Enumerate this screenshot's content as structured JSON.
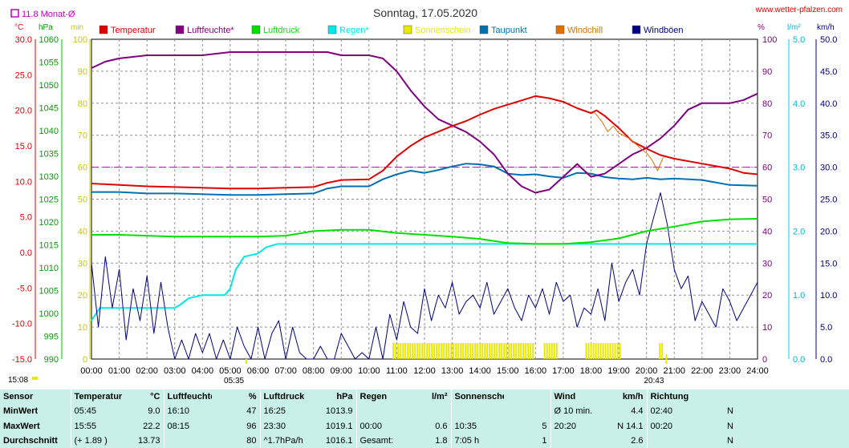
{
  "title": "Sonntag, 17.05.2020",
  "website": "www.wetter-pfalzen.com",
  "month_avg_label": "11.8 Monat-Ø",
  "unit_labels": {
    "temp": "°C",
    "pressure": "hPa",
    "rain_min": "min",
    "percent": "%",
    "rain": "l/m²",
    "wind": "km/h"
  },
  "legend": [
    {
      "label": "Temperatur",
      "color": "#e00000"
    },
    {
      "label": "Luftfeuchte*",
      "color": "#800080"
    },
    {
      "label": "Luftdruck",
      "color": "#00e000"
    },
    {
      "label": "Regen*",
      "color": "#00e8e8"
    },
    {
      "label": "Sonnenschein",
      "color": "#e8e800"
    },
    {
      "label": "Taupunkt",
      "color": "#0070b0"
    },
    {
      "label": "Windchill",
      "color": "#e07000"
    },
    {
      "label": "Windböen",
      "color": "#000080"
    }
  ],
  "axes": {
    "temp_ticks": [
      "30.0",
      "25.0",
      "20.0",
      "15.0",
      "10.0",
      "5.0",
      "0.0",
      "-5.0",
      "-10.0",
      "-15.0"
    ],
    "pressure_ticks": [
      "1060",
      "1055",
      "1050",
      "1045",
      "1040",
      "1035",
      "1030",
      "1025",
      "1020",
      "1015",
      "1010",
      "1005",
      "1000",
      "995",
      "990"
    ],
    "min_ticks": [
      "100",
      "90",
      "80",
      "70",
      "60",
      "50",
      "40",
      "30",
      "20",
      "10",
      "0"
    ],
    "pct_ticks": [
      "100",
      "90",
      "80",
      "70",
      "60",
      "50",
      "40",
      "30",
      "20",
      "10",
      "0"
    ],
    "rain_ticks": [
      "5.0",
      "4.0",
      "3.0",
      "2.0",
      "1.0",
      "0.0"
    ],
    "wind_ticks": [
      "50.0",
      "45.0",
      "40.0",
      "35.0",
      "30.0",
      "25.0",
      "20.0",
      "15.0",
      "10.0",
      "5.0",
      "0.0"
    ],
    "time_ticks": [
      "00:00",
      "01:00",
      "02:00",
      "03:00",
      "04:00",
      "05:00",
      "06:00",
      "07:00",
      "08:00",
      "09:00",
      "10:00",
      "11:00",
      "12:00",
      "13:00",
      "14:00",
      "15:00",
      "16:00",
      "17:00",
      "18:00",
      "19:00",
      "20:00",
      "21:00",
      "22:00",
      "23:00",
      "24:00"
    ]
  },
  "markers": {
    "sunrise": "05:35",
    "sunset": "20:43",
    "now": "15:08"
  },
  "chart_data": {
    "type": "line",
    "x_unit": "hour of day",
    "xlim": [
      0,
      24
    ],
    "reference_line": {
      "value_percent": 60,
      "color": "#c000c0"
    },
    "series": [
      {
        "name": "Temperatur",
        "axis": "°C",
        "ylim": [
          -15,
          30
        ],
        "color": "#e00000",
        "x": [
          0,
          1,
          2,
          3,
          4,
          5,
          6,
          7,
          8,
          8.5,
          9,
          10,
          10.5,
          11,
          11.5,
          12,
          12.5,
          13,
          13.5,
          14,
          14.5,
          15,
          15.5,
          16,
          16.5,
          17,
          17.5,
          18,
          18.2,
          18.5,
          19,
          19.5,
          20,
          20.5,
          21,
          22,
          23,
          23.5,
          24
        ],
        "y": [
          9.7,
          9.5,
          9.3,
          9.2,
          9.1,
          9.0,
          9.0,
          9.1,
          9.2,
          9.8,
          10.2,
          10.3,
          11.5,
          13.5,
          15.0,
          16.2,
          17.0,
          17.8,
          18.5,
          19.4,
          20.2,
          20.8,
          21.4,
          22.0,
          21.7,
          21.2,
          20.3,
          19.6,
          20.0,
          19.2,
          17.5,
          15.6,
          14.6,
          13.7,
          13.2,
          12.5,
          11.8,
          11.2,
          11.0
        ]
      },
      {
        "name": "Luftfeuchte*",
        "axis": "%",
        "ylim": [
          0,
          100
        ],
        "color": "#800080",
        "x": [
          0,
          0.5,
          1,
          2,
          3,
          4,
          5,
          6,
          7,
          8,
          8.5,
          9,
          9.5,
          10,
          10.5,
          11,
          11.5,
          12,
          12.5,
          13,
          13.5,
          14,
          14.5,
          15,
          15.5,
          16,
          16.5,
          17,
          17.5,
          18,
          18.5,
          19,
          19.5,
          20,
          20.5,
          21,
          21.5,
          22,
          22.5,
          23,
          23.5,
          24
        ],
        "y": [
          91,
          93,
          94,
          95,
          95,
          95,
          96,
          96,
          96,
          96,
          96,
          95,
          95,
          95,
          94,
          90,
          84,
          79,
          75,
          73,
          71,
          68,
          64,
          58,
          54,
          52,
          53,
          57,
          61,
          57,
          58,
          61,
          64,
          66,
          69,
          73,
          78,
          80,
          80,
          80,
          81,
          83
        ]
      },
      {
        "name": "Luftdruck",
        "axis": "hPa",
        "ylim": [
          990,
          1060
        ],
        "color": "#00e000",
        "x": [
          0,
          1,
          2,
          3,
          4,
          5,
          6,
          7,
          8,
          9,
          10,
          11,
          12,
          13,
          14,
          15,
          16,
          17,
          18,
          19,
          20,
          21,
          22,
          23,
          24
        ],
        "y": [
          1017.2,
          1017.2,
          1017.0,
          1016.8,
          1016.8,
          1016.8,
          1016.8,
          1017.0,
          1018.0,
          1018.3,
          1018.3,
          1017.6,
          1017.2,
          1016.8,
          1016.3,
          1015.4,
          1015.2,
          1015.2,
          1015.6,
          1016.4,
          1018.0,
          1019.0,
          1020.1,
          1020.6,
          1020.7
        ]
      },
      {
        "name": "Regen*",
        "axis": "l/m²",
        "ylim": [
          0,
          5
        ],
        "color": "#00e8e8",
        "x": [
          0,
          0.15,
          0.3,
          0.5,
          1,
          2,
          3,
          3.2,
          3.5,
          4,
          4.8,
          5,
          5.2,
          5.5,
          6,
          6.3,
          6.7,
          7,
          8,
          9,
          10,
          11,
          12,
          13,
          14,
          15,
          16,
          17,
          18,
          19,
          20,
          21,
          22,
          23,
          24
        ],
        "y": [
          0.6,
          0.7,
          0.8,
          0.8,
          0.8,
          0.8,
          0.8,
          0.85,
          0.95,
          1.0,
          1.0,
          1.1,
          1.4,
          1.6,
          1.65,
          1.75,
          1.8,
          1.8,
          1.8,
          1.8,
          1.8,
          1.8,
          1.8,
          1.8,
          1.8,
          1.8,
          1.8,
          1.8,
          1.8,
          1.8,
          1.8,
          1.8,
          1.8,
          1.8,
          1.8
        ]
      },
      {
        "name": "Sonnenschein",
        "axis": "min",
        "type": "bar",
        "color": "#e8e800",
        "intervals": [
          [
            10.85,
            15.9
          ],
          [
            16.3,
            16.8
          ],
          [
            17.8,
            19.1
          ],
          [
            20.45,
            20.55
          ]
        ],
        "bar_height_min": 5
      },
      {
        "name": "Taupunkt",
        "axis": "°C",
        "ylim": [
          -15,
          30
        ],
        "color": "#0070b0",
        "x": [
          0,
          1,
          2,
          3,
          4,
          5,
          6,
          7,
          8,
          8.5,
          9,
          10,
          10.5,
          11,
          11.5,
          12,
          12.5,
          13,
          13.5,
          14,
          14.5,
          15,
          15.5,
          16,
          16.5,
          17,
          17.5,
          18,
          18.5,
          19,
          19.5,
          20,
          20.5,
          21,
          22,
          23,
          24
        ],
        "y": [
          8.5,
          8.5,
          8.3,
          8.3,
          8.2,
          8.1,
          8.1,
          8.2,
          8.3,
          9.0,
          9.3,
          9.3,
          10.3,
          11.0,
          11.5,
          11.2,
          11.6,
          12.1,
          12.5,
          12.4,
          12.1,
          11.1,
          10.9,
          11.0,
          10.7,
          10.5,
          11.2,
          11.1,
          10.6,
          10.4,
          10.3,
          10.5,
          10.3,
          10.4,
          10.2,
          9.5,
          9.4
        ]
      },
      {
        "name": "Windchill",
        "axis": "°C",
        "ylim": [
          -15,
          30
        ],
        "color": "#e07000",
        "x": [
          18.1,
          18.4,
          18.6,
          18.8,
          19,
          19.4,
          19.8,
          20,
          20.2,
          20.4,
          20.6
        ],
        "y": [
          19.8,
          18.4,
          17.0,
          17.8,
          16.8,
          16.0,
          14.6,
          14.0,
          13.0,
          11.5,
          13.4
        ]
      },
      {
        "name": "Windböen",
        "axis": "km/h",
        "ylim": [
          0,
          50
        ],
        "color": "#000080",
        "x": [
          0,
          0.25,
          0.5,
          0.75,
          1,
          1.25,
          1.5,
          1.75,
          2,
          2.25,
          2.5,
          2.75,
          3,
          3.25,
          3.5,
          3.75,
          4,
          4.25,
          4.5,
          4.75,
          5,
          5.25,
          5.5,
          5.75,
          6,
          6.25,
          6.5,
          6.75,
          7,
          7.25,
          7.5,
          7.75,
          8,
          8.25,
          8.5,
          8.75,
          9,
          9.25,
          9.5,
          9.75,
          10,
          10.25,
          10.5,
          10.75,
          11,
          11.25,
          11.5,
          11.75,
          12,
          12.25,
          12.5,
          12.75,
          13,
          13.25,
          13.5,
          13.75,
          14,
          14.25,
          14.5,
          14.75,
          15,
          15.25,
          15.5,
          15.75,
          16,
          16.25,
          16.5,
          16.75,
          17,
          17.25,
          17.5,
          17.75,
          18,
          18.25,
          18.5,
          18.75,
          19,
          19.25,
          19.5,
          19.75,
          20,
          20.25,
          20.5,
          20.75,
          21,
          21.25,
          21.5,
          21.75,
          22,
          22.25,
          22.5,
          22.75,
          23,
          23.25,
          23.5,
          23.75,
          24
        ],
        "y": [
          15,
          5,
          16,
          8,
          14,
          3,
          11,
          6,
          13,
          4,
          12,
          5,
          0,
          3,
          0,
          4,
          1,
          4,
          0,
          3,
          0,
          5,
          2,
          0,
          5,
          0,
          4,
          6,
          0,
          5,
          1,
          0,
          0,
          2,
          0,
          0,
          4,
          2,
          0,
          1,
          0,
          5,
          0,
          7,
          3,
          9,
          5,
          4,
          11,
          6,
          10,
          8,
          12,
          7,
          9,
          10,
          8,
          12,
          7,
          9,
          11,
          8,
          6,
          10,
          8,
          11,
          7,
          12,
          9,
          10,
          5,
          8,
          7,
          11,
          6,
          15,
          9,
          12,
          14,
          10,
          18,
          22,
          26,
          21,
          14,
          11,
          13,
          6,
          9,
          7,
          5,
          11,
          9,
          6,
          8,
          10,
          12
        ]
      }
    ]
  },
  "stats": {
    "headers": [
      {
        "label": "Sensor",
        "unit": ""
      },
      {
        "label": "Temperatur",
        "unit": "°C"
      },
      {
        "label": "Luftfeuchte",
        "unit": "%"
      },
      {
        "label": "Luftdruck",
        "unit": "hPa"
      },
      {
        "label": "Regen",
        "unit": "l/m²"
      },
      {
        "label": "Sonnenschein min",
        "unit": ""
      },
      {
        "label": "Wind",
        "unit": "km/h"
      },
      {
        "label": "Richtung",
        "unit": ""
      }
    ],
    "rows": [
      {
        "label": "MinWert",
        "temp_time": "05:45",
        "temp": "9.0",
        "hum_time": "16:10",
        "hum": "47",
        "press_time": "16:25",
        "press": "1013.9",
        "rain_time": "",
        "rain": "",
        "sun_time": "",
        "sun": "",
        "wind_time": "Ø 10 min.",
        "wind": "4.4",
        "dir_time": "02:40",
        "dir": "N"
      },
      {
        "label": "MaxWert",
        "temp_time": "15:55",
        "temp": "22.2",
        "hum_time": "08:15",
        "hum": "96",
        "press_time": "23:30",
        "press": "1019.1",
        "rain_time": "00:00",
        "rain": "0.6",
        "sun_time": "10:35",
        "sun": "5",
        "wind_time": "20:20",
        "wind": "N 14.1",
        "dir_time": "00:20",
        "dir": "N"
      },
      {
        "label": "Durchschnitt",
        "temp_time": "(+ 1.89 )",
        "temp": "13.73",
        "hum_time": "",
        "hum": "80",
        "press_time": "^1.7hPa/h",
        "press": "1016.1",
        "rain_time": "Gesamt:",
        "rain": "1.8",
        "sun_time": "7:05 h",
        "sun": "1",
        "wind_time": "",
        "wind": "2.6",
        "dir_time": "",
        "dir": "N"
      }
    ]
  }
}
